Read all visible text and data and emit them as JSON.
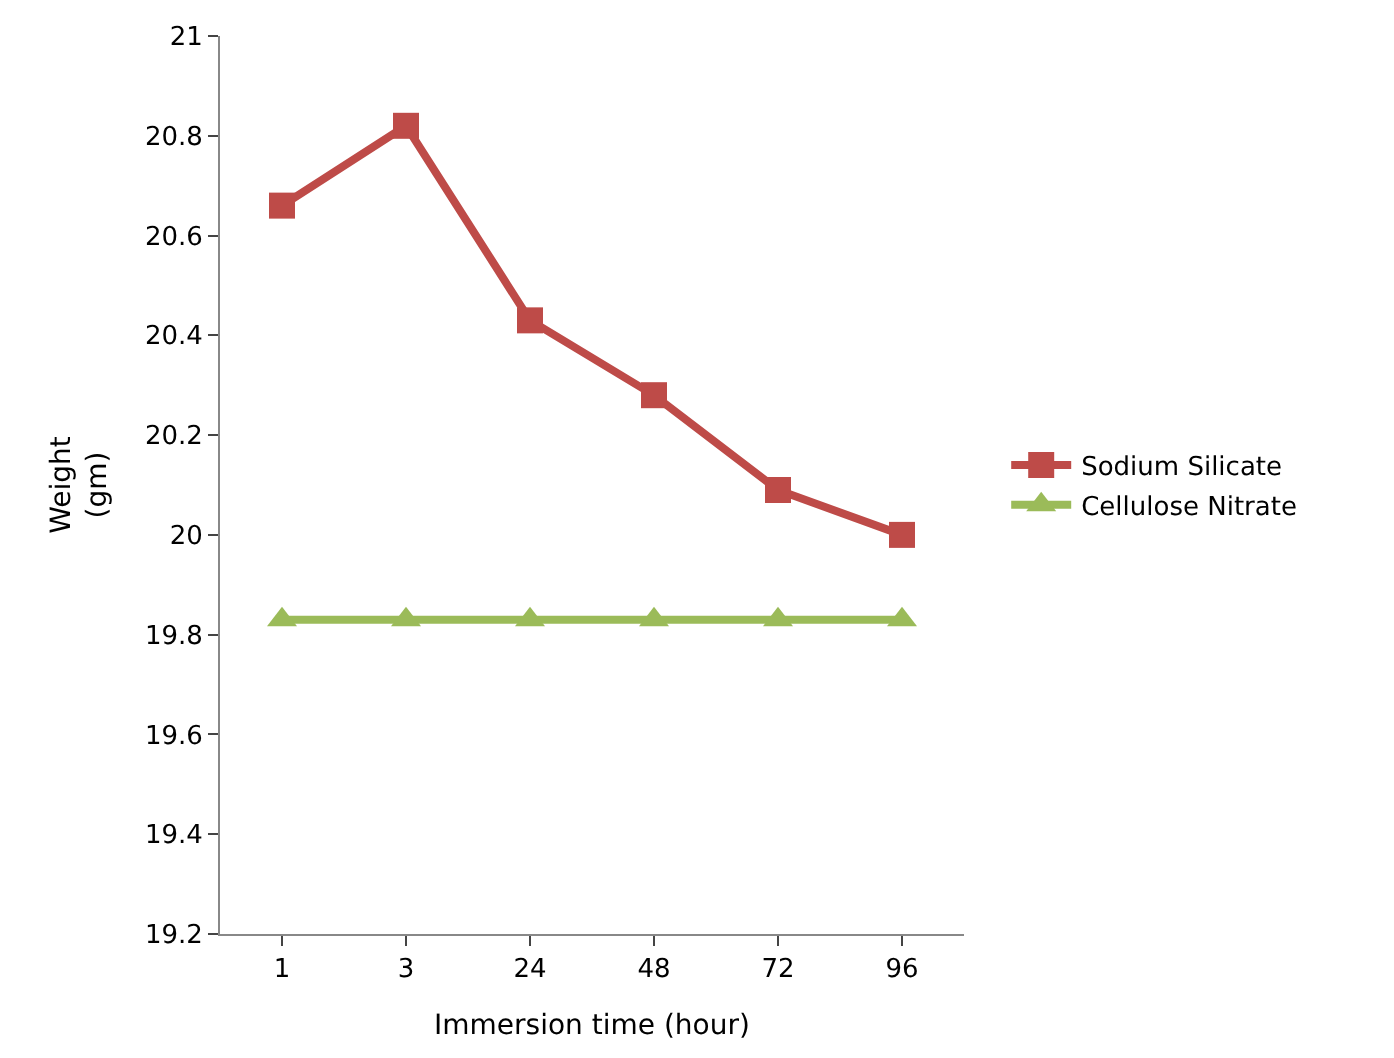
{
  "chart_data": {
    "type": "line",
    "xlabel": "Immersion time (hour)",
    "ylabel": "Weight\n(gm)",
    "categories": [
      "1",
      "3",
      "24",
      "48",
      "72",
      "96"
    ],
    "series": [
      {
        "name": "Sodium Silicate",
        "color": "#be4b48",
        "marker": "square",
        "values": [
          20.66,
          20.82,
          20.43,
          20.28,
          20.09,
          20.0
        ]
      },
      {
        "name": "Cellulose Nitrate",
        "color": "#9bbb59",
        "marker": "triangle",
        "values": [
          19.83,
          19.83,
          19.83,
          19.83,
          19.83,
          19.83
        ]
      }
    ],
    "ylim": [
      19.2,
      21
    ],
    "yticks": [
      19.2,
      19.4,
      19.6,
      19.8,
      20,
      20.2,
      20.4,
      20.6,
      20.8,
      21
    ],
    "legend": "right"
  }
}
